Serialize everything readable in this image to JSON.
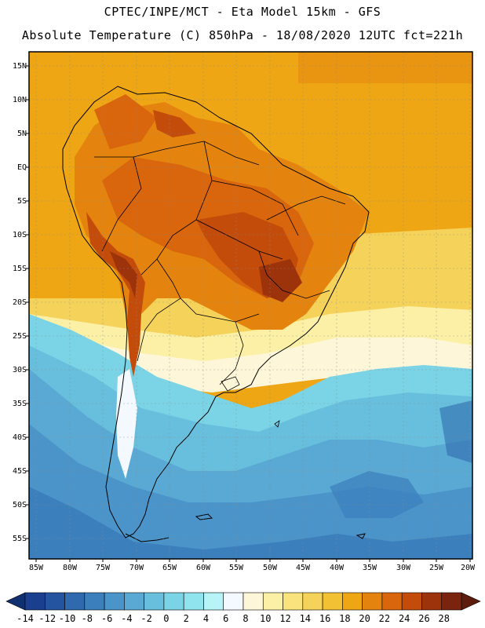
{
  "header": {
    "line1": "CPTEC/INPE/MCT -  Eta Model 15km - GFS",
    "line2": "Absolute Temperature (C) 850hPa - 18/08/2020 12UTC fct=221h"
  },
  "axes": {
    "lat_labels": [
      "15N",
      "10N",
      "5N",
      "EQ",
      "5S",
      "10S",
      "15S",
      "20S",
      "25S",
      "30S",
      "35S",
      "40S",
      "45S",
      "50S",
      "55S"
    ],
    "lon_labels": [
      "85W",
      "80W",
      "75W",
      "70W",
      "65W",
      "60W",
      "55W",
      "50W",
      "45W",
      "40W",
      "35W",
      "30W",
      "25W",
      "20W"
    ]
  },
  "colorbar": {
    "labels": [
      "-14",
      "-12",
      "-10",
      "-8",
      "-6",
      "-4",
      "-2",
      "0",
      "2",
      "4",
      "6",
      "8",
      "10",
      "12",
      "14",
      "16",
      "18",
      "20",
      "22",
      "24",
      "26",
      "28"
    ],
    "colors": [
      "#1a3f8f",
      "#24549f",
      "#2f6aae",
      "#3b7fbd",
      "#4b94c9",
      "#5aa9d4",
      "#67bfdd",
      "#7bd3e6",
      "#8fe4ee",
      "#b7f4f8",
      "#f3f9fe",
      "#fdf6d8",
      "#fbf0a6",
      "#f8e37d",
      "#f5d35a",
      "#f2c234",
      "#eea615",
      "#e4840f",
      "#d9650c",
      "#c34c0b",
      "#9c330b",
      "#7a2410"
    ],
    "under_color": "#11306f",
    "over_color": "#5e1a0b"
  }
}
